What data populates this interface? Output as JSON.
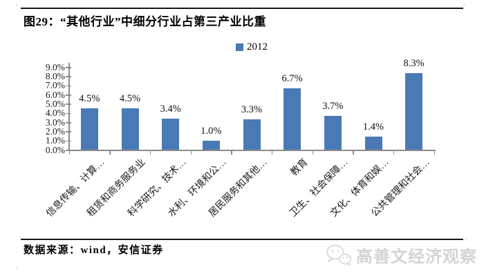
{
  "figure": {
    "title": "图29：“其他行业”中细分行业占第三产业比重",
    "source": "数据来源：wind，安信证券",
    "watermark_text": "高善文经济观察",
    "watermark_icon": "wechat-bubbles-icon",
    "corner_mark_glyph": "✳"
  },
  "chart_data": {
    "type": "bar",
    "title": "图29：“其他行业”中细分行业占第三产业比重",
    "legend_position": "top-center",
    "categories": [
      "信息传输、计算…",
      "租赁和商务服务业",
      "科学研究、技术…",
      "水利、环境和公…",
      "居民服务和其他…",
      "教育",
      "卫生、社会保障…",
      "文化、体育和娱…",
      "公共管理和社会…"
    ],
    "series": [
      {
        "name": "2012",
        "values": [
          4.5,
          4.5,
          3.4,
          1.0,
          3.3,
          6.7,
          3.7,
          1.4,
          8.3
        ]
      }
    ],
    "value_labels": [
      "4.5%",
      "4.5%",
      "3.4%",
      "1.0%",
      "3.3%",
      "6.7%",
      "3.7%",
      "1.4%",
      "8.3%"
    ],
    "ytick_labels": [
      "0.0%",
      "1.0%",
      "2.0%",
      "3.0%",
      "4.0%",
      "5.0%",
      "6.0%",
      "7.0%",
      "8.0%",
      "9.0%"
    ],
    "ylim": [
      0,
      9
    ],
    "ytick_step": 1.0,
    "xlabel": "",
    "ylabel": "",
    "grid": false,
    "bar_color": "#4a7ab5",
    "axis_color": "#8a8a8a",
    "watermark_color": "#d4d4d4"
  }
}
